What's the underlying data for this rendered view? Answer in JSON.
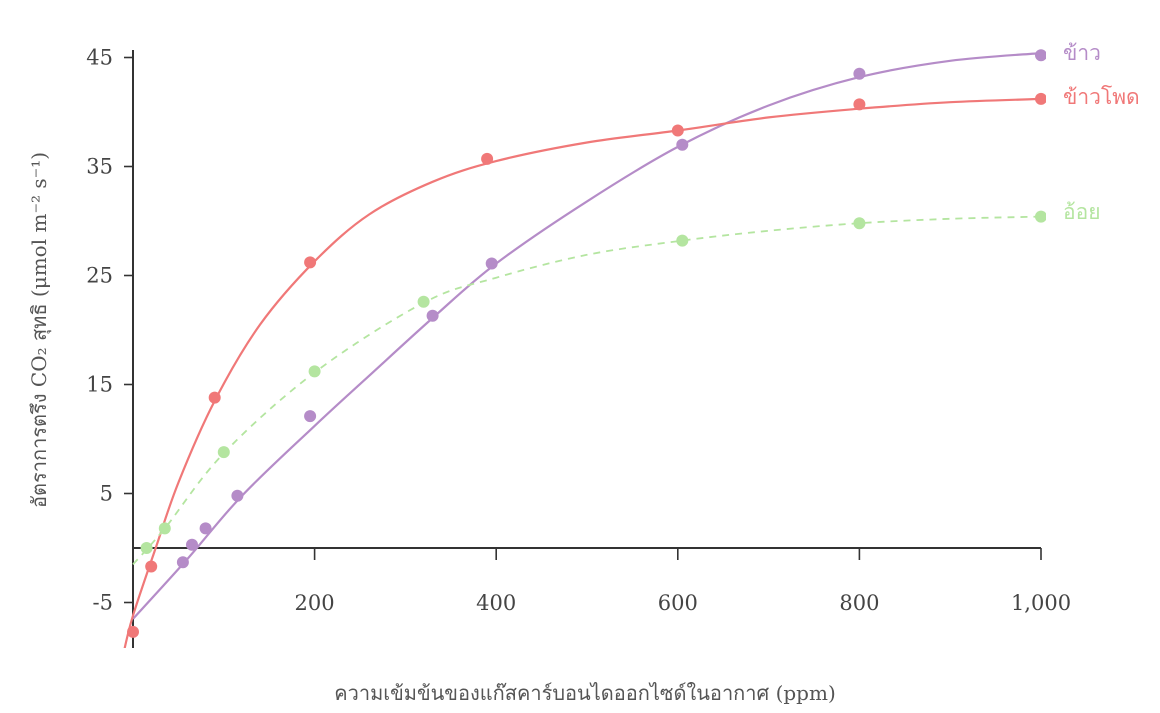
{
  "chart_data": {
    "type": "line",
    "title": "",
    "xlabel": "ความเข้มข้นของแก๊สคาร์บอนไดออกไซด์ในอากาศ (ppm)",
    "ylabel": "อัตราการตรึง CO₂ สุทธิ (μmol m⁻² s⁻¹)",
    "xlim": [
      0,
      1000
    ],
    "ylim": [
      -10,
      47
    ],
    "xticks": [
      200,
      400,
      600,
      800,
      1000
    ],
    "xtick_labels": [
      "200",
      "400",
      "600",
      "800",
      "1,000"
    ],
    "yticks": [
      -5,
      5,
      15,
      25,
      35,
      45
    ],
    "ytick_labels": [
      "-5",
      "5",
      "15",
      "25",
      "35",
      "45"
    ],
    "grid": false,
    "legend": "series labels at right end of curves",
    "series": [
      {
        "name": "ข้าว",
        "color": "#b58cc8",
        "line_style": "solid",
        "points": [
          [
            55,
            -1.3
          ],
          [
            65,
            0.3
          ],
          [
            80,
            1.8
          ],
          [
            115,
            4.8
          ],
          [
            195,
            12.1
          ],
          [
            330,
            21.3
          ],
          [
            395,
            26.1
          ],
          [
            605,
            37.0
          ],
          [
            800,
            43.5
          ],
          [
            1000,
            45.2
          ]
        ],
        "curve": [
          [
            0,
            -6.5
          ],
          [
            60,
            -1.0
          ],
          [
            120,
            4.8
          ],
          [
            200,
            11.2
          ],
          [
            260,
            15.8
          ],
          [
            330,
            21.1
          ],
          [
            400,
            26.1
          ],
          [
            500,
            31.8
          ],
          [
            600,
            36.8
          ],
          [
            700,
            40.6
          ],
          [
            800,
            43.2
          ],
          [
            900,
            44.7
          ],
          [
            1000,
            45.4
          ]
        ]
      },
      {
        "name": "ข้าวโพด",
        "color": "#f07878",
        "line_style": "solid",
        "points": [
          [
            0,
            -7.7
          ],
          [
            20,
            -1.7
          ],
          [
            90,
            13.8
          ],
          [
            195,
            26.2
          ],
          [
            390,
            35.7
          ],
          [
            600,
            38.3
          ],
          [
            800,
            40.7
          ],
          [
            1000,
            41.2
          ]
        ],
        "curve": [
          [
            -10,
            -9.5
          ],
          [
            0,
            -6.2
          ],
          [
            25,
            0.0
          ],
          [
            50,
            6.0
          ],
          [
            90,
            13.5
          ],
          [
            140,
            20.5
          ],
          [
            200,
            26.3
          ],
          [
            260,
            30.6
          ],
          [
            330,
            33.6
          ],
          [
            400,
            35.5
          ],
          [
            500,
            37.2
          ],
          [
            600,
            38.3
          ],
          [
            700,
            39.5
          ],
          [
            800,
            40.3
          ],
          [
            900,
            40.9
          ],
          [
            1000,
            41.2
          ]
        ]
      },
      {
        "name": "อ้อย",
        "color": "#b4e5a0",
        "line_style": "dashed",
        "points": [
          [
            15,
            0.0
          ],
          [
            35,
            1.8
          ],
          [
            100,
            8.8
          ],
          [
            200,
            16.2
          ],
          [
            320,
            22.6
          ],
          [
            605,
            28.2
          ],
          [
            800,
            29.8
          ],
          [
            1000,
            30.4
          ]
        ],
        "curve": [
          [
            0,
            -1.5
          ],
          [
            35,
            1.8
          ],
          [
            100,
            8.7
          ],
          [
            200,
            16.1
          ],
          [
            320,
            22.5
          ],
          [
            400,
            24.8
          ],
          [
            500,
            26.9
          ],
          [
            605,
            28.2
          ],
          [
            700,
            29.1
          ],
          [
            800,
            29.8
          ],
          [
            900,
            30.2
          ],
          [
            1000,
            30.4
          ]
        ]
      }
    ]
  }
}
